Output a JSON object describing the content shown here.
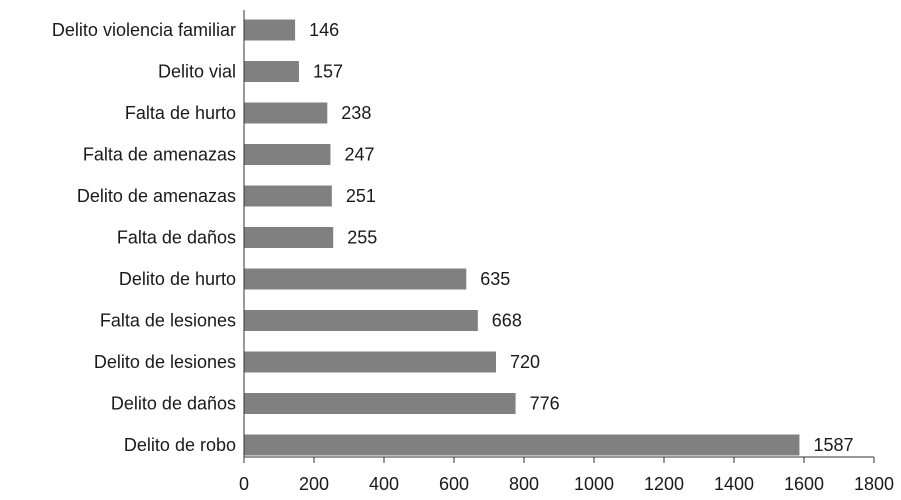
{
  "chart_data": {
    "type": "bar",
    "orientation": "horizontal",
    "title": "",
    "xlabel": "",
    "ylabel": "",
    "categories": [
      "Delito violencia familiar",
      "Delito vial",
      "Falta de hurto",
      "Falta de amenazas",
      "Delito de amenazas",
      "Falta de daños",
      "Delito de hurto",
      "Falta de lesiones",
      "Delito de lesiones",
      "Delito de daños",
      "Delito de robo"
    ],
    "values": [
      146,
      157,
      238,
      247,
      251,
      255,
      635,
      668,
      720,
      776,
      1587
    ],
    "value_labels": [
      "146",
      "157",
      "238",
      "247",
      "251",
      "255",
      "635",
      "668",
      "720",
      "776",
      "1587"
    ],
    "xlim": [
      0,
      1800
    ],
    "xticks": [
      0,
      200,
      400,
      600,
      800,
      1000,
      1200,
      1400,
      1600,
      1800
    ],
    "xtick_labels": [
      "0",
      "200",
      "400",
      "600",
      "800",
      "1000",
      "1200",
      "1400",
      "1600",
      "1800"
    ],
    "grid": false,
    "legend": "none",
    "bar_color": "#808080"
  }
}
